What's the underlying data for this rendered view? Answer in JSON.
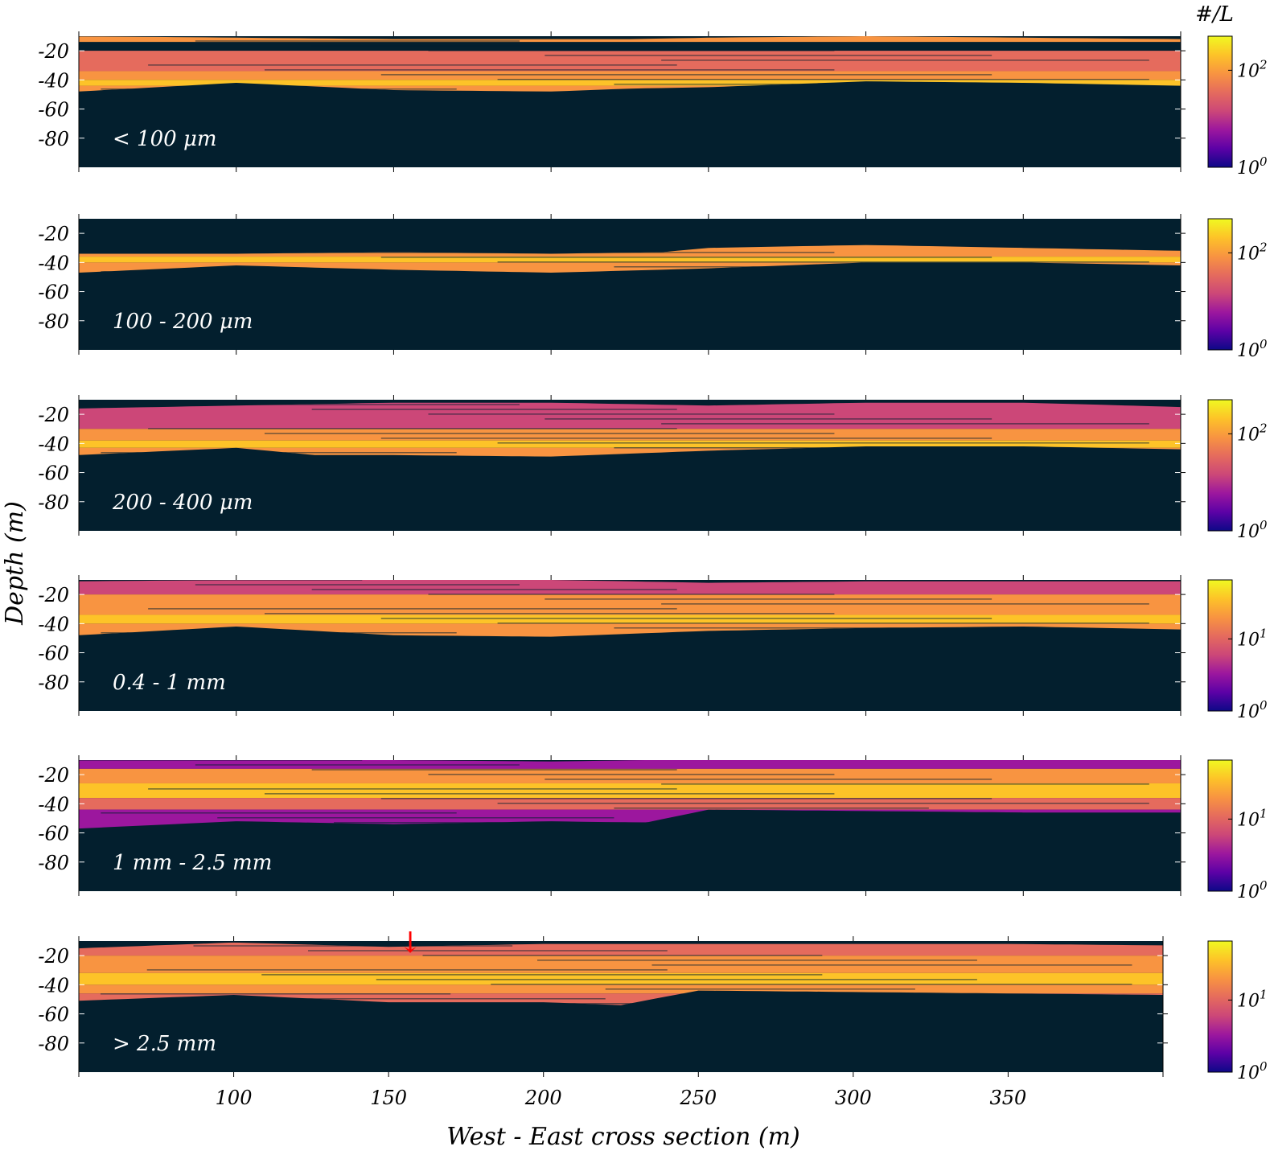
{
  "chart_data": {
    "type": "heatmap",
    "xlabel": "West - East cross section (m)",
    "ylabel": "Depth (m)",
    "colorbar_label": "#/L",
    "xlim": [
      50,
      400
    ],
    "ylim": [
      -100,
      -10
    ],
    "x_ticks": [
      100,
      150,
      200,
      250,
      300,
      350
    ],
    "y_ticks": [
      -20,
      -40,
      -60,
      -80
    ],
    "colormap": [
      "#0d0887",
      "#5c01a6",
      "#9c179e",
      "#cc4778",
      "#e56b5d",
      "#f89441",
      "#fdc328",
      "#f0f921"
    ],
    "background_color": "#031f2e",
    "annotation": {
      "text": "↓",
      "x": 157,
      "color": "#ff0000"
    },
    "panels": [
      {
        "label": "< 100 μm",
        "colorbar_ticks": [
          {
            "base": "10",
            "exp": "0"
          },
          {
            "base": "10",
            "exp": "2"
          }
        ],
        "x": [
          50,
          100,
          150,
          200,
          225,
          250,
          300,
          350,
          400
        ],
        "top": [
          -10,
          -11,
          -12,
          -12,
          -12,
          -11,
          -10,
          -11,
          -12
        ],
        "bottom": [
          -48,
          -42,
          -47,
          -48,
          -46,
          -45,
          -41,
          -42,
          -44
        ],
        "bands": [
          {
            "from": -10,
            "to": -14,
            "color": "#f89441"
          },
          {
            "from": -14,
            "to": -20,
            "color": "#031f2e"
          },
          {
            "from": -20,
            "to": -34,
            "color": "#e56b5d"
          },
          {
            "from": -34,
            "to": -40,
            "color": "#f89441"
          },
          {
            "from": -40,
            "to": -44,
            "color": "#fdc328"
          },
          {
            "from": -44,
            "to": -50,
            "color": "#f89441"
          }
        ]
      },
      {
        "label": "100 - 200 μm",
        "colorbar_ticks": [
          {
            "base": "10",
            "exp": "0"
          },
          {
            "base": "10",
            "exp": "2"
          }
        ],
        "x": [
          50,
          100,
          150,
          200,
          235,
          250,
          300,
          350,
          400
        ],
        "top": [
          -34,
          -34,
          -33,
          -34,
          -33,
          -30,
          -28,
          -30,
          -32
        ],
        "bottom": [
          -47,
          -42,
          -45,
          -47,
          -45,
          -44,
          -40,
          -40,
          -42
        ],
        "bands": [
          {
            "from": -28,
            "to": -36,
            "color": "#f89441"
          },
          {
            "from": -36,
            "to": -40,
            "color": "#fdc328"
          },
          {
            "from": -40,
            "to": -48,
            "color": "#f89441"
          }
        ]
      },
      {
        "label": "200 - 400 μm",
        "colorbar_ticks": [
          {
            "base": "10",
            "exp": "0"
          },
          {
            "base": "10",
            "exp": "2"
          }
        ],
        "x": [
          50,
          100,
          125,
          150,
          200,
          225,
          250,
          300,
          350,
          400
        ],
        "top": [
          -16,
          -14,
          -13,
          -12,
          -12,
          -13,
          -14,
          -12,
          -12,
          -15
        ],
        "bottom": [
          -48,
          -43,
          -48,
          -48,
          -49,
          -47,
          -45,
          -42,
          -42,
          -44
        ],
        "bands": [
          {
            "from": -12,
            "to": -30,
            "color": "#cc4778"
          },
          {
            "from": -30,
            "to": -38,
            "color": "#f89441"
          },
          {
            "from": -38,
            "to": -43,
            "color": "#fdc328"
          },
          {
            "from": -43,
            "to": -50,
            "color": "#f89441"
          }
        ]
      },
      {
        "label": "0.4 - 1 mm",
        "colorbar_ticks": [
          {
            "base": "10",
            "exp": "0"
          },
          {
            "base": "10",
            "exp": "1"
          }
        ],
        "x": [
          50,
          100,
          150,
          200,
          225,
          250,
          300,
          350,
          400
        ],
        "top": [
          -11,
          -10,
          -10,
          -10,
          -11,
          -12,
          -11,
          -11,
          -11
        ],
        "bottom": [
          -48,
          -42,
          -48,
          -49,
          -47,
          -45,
          -43,
          -42,
          -44
        ],
        "bands": [
          {
            "from": -10,
            "to": -20,
            "color": "#cc4778"
          },
          {
            "from": -20,
            "to": -34,
            "color": "#f89441"
          },
          {
            "from": -34,
            "to": -40,
            "color": "#fdc328"
          },
          {
            "from": -40,
            "to": -50,
            "color": "#f89441"
          }
        ]
      },
      {
        "label": "1 mm - 2.5 mm",
        "colorbar_ticks": [
          {
            "base": "10",
            "exp": "0"
          },
          {
            "base": "10",
            "exp": "1"
          }
        ],
        "x": [
          50,
          100,
          150,
          200,
          230,
          250,
          300,
          350,
          400
        ],
        "top": [
          -10,
          -10,
          -10,
          -11,
          -10,
          -10,
          -10,
          -10,
          -10
        ],
        "bottom": [
          -57,
          -52,
          -54,
          -52,
          -53,
          -44,
          -45,
          -46,
          -46
        ],
        "bands": [
          {
            "from": -10,
            "to": -16,
            "color": "#9c179e"
          },
          {
            "from": -16,
            "to": -26,
            "color": "#f89441"
          },
          {
            "from": -26,
            "to": -36,
            "color": "#fdc328"
          },
          {
            "from": -36,
            "to": -44,
            "color": "#e56b5d"
          },
          {
            "from": -44,
            "to": -58,
            "color": "#9c179e"
          }
        ]
      },
      {
        "label": "> 2.5 mm",
        "colorbar_ticks": [
          {
            "base": "10",
            "exp": "0"
          },
          {
            "base": "10",
            "exp": "1"
          }
        ],
        "x": [
          50,
          100,
          150,
          200,
          225,
          250,
          300,
          350,
          400
        ],
        "top": [
          -15,
          -11,
          -14,
          -12,
          -12,
          -12,
          -12,
          -12,
          -13
        ],
        "bottom": [
          -51,
          -47,
          -52,
          -52,
          -54,
          -44,
          -45,
          -46,
          -47
        ],
        "bands": [
          {
            "from": -11,
            "to": -20,
            "color": "#e56b5d"
          },
          {
            "from": -20,
            "to": -32,
            "color": "#f89441"
          },
          {
            "from": -32,
            "to": -40,
            "color": "#fdc328"
          },
          {
            "from": -40,
            "to": -46,
            "color": "#f89441"
          },
          {
            "from": -46,
            "to": -55,
            "color": "#e56b5d"
          }
        ]
      }
    ]
  }
}
